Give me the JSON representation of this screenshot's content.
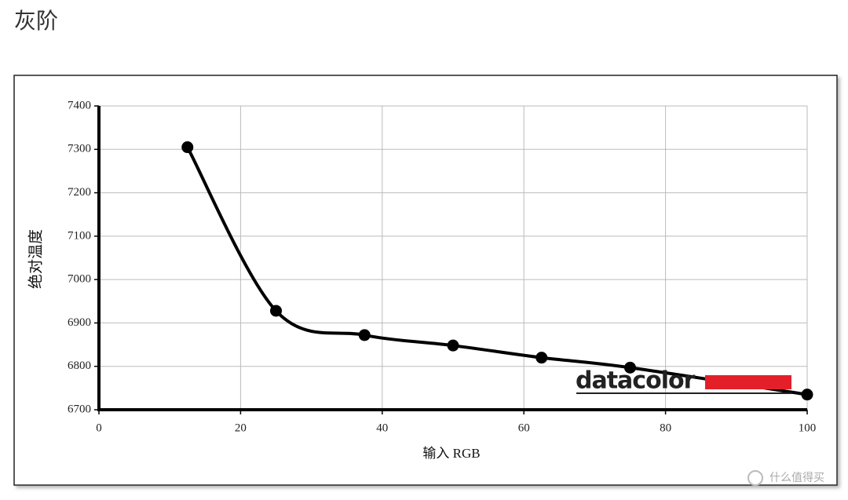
{
  "chart_data": {
    "type": "line",
    "title": "灰阶",
    "x_label": "输入 RGB",
    "y_label": "绝对温度",
    "x": [
      12.5,
      25,
      37.5,
      50,
      62.5,
      75,
      100
    ],
    "series": [
      {
        "name": "灰阶",
        "color": "#000000",
        "values": [
          7305,
          6928,
          6872,
          6848,
          6820,
          6797,
          6735
        ]
      }
    ],
    "xlim": [
      0,
      100
    ],
    "xticks": [
      0,
      20,
      40,
      60,
      80,
      100
    ],
    "ylim": [
      6700,
      7400
    ],
    "yticks": [
      6700,
      6800,
      6900,
      7000,
      7100,
      7200,
      7300,
      7400
    ],
    "grid": true,
    "annotations": [
      "datacolor",
      "什么值得买"
    ]
  }
}
